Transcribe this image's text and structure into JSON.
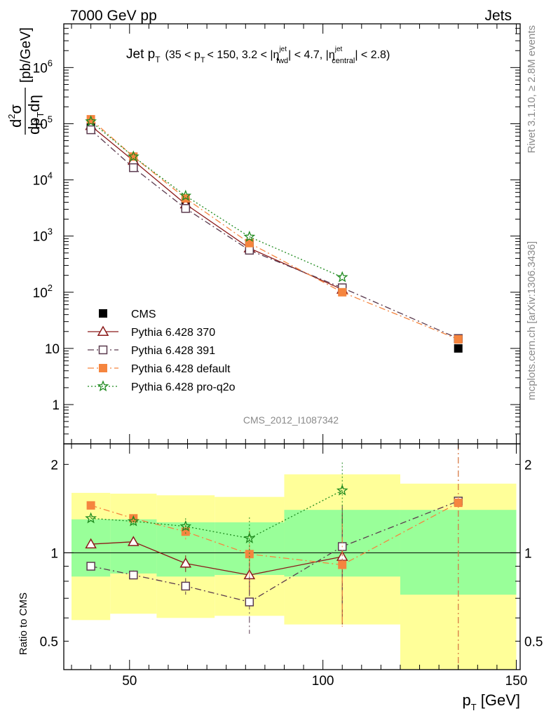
{
  "header": {
    "left": "7000 GeV pp",
    "right": "Jets",
    "side_top": "Rivet 3.1.10, ≥ 2.8M events",
    "side_bottom": "mcplots.cern.ch [arXiv:1306.3436]"
  },
  "plot_title": {
    "main": "Jet p",
    "main_sub": "T",
    "cond_open": "(35 < p",
    "cond_sub1": "T",
    "cond_mid1": "< 150, 3.2 < |η",
    "cond_sup1": "jet",
    "cond_sub2": "fwd",
    "cond_mid2": "| < 4.7, |η",
    "cond_sup2": "jet",
    "cond_sub3": "central",
    "cond_close": "| < 2.8)"
  },
  "analysis_id": "CMS_2012_I1087342",
  "axes": {
    "y_top_parts": {
      "d2": "d",
      "two": "2",
      "sigma": "σ",
      "denom_d": "dp",
      "denom_T": "T",
      "denom_rest": "dη",
      "unit": "[pb/GeV]"
    },
    "y_bottom": "Ratio to CMS",
    "x_main": "p",
    "x_sub": "T",
    "x_unit": "[GeV]"
  },
  "colors": {
    "cms": "#000000",
    "p370": "#8b1a1a",
    "p391": "#5a3a4e",
    "pdefault": "#f5853f",
    "pq2o": "#1e8a1e",
    "band_inner": "#99ff99",
    "band_outer": "#ffff99"
  },
  "chart_data": {
    "type": "scatter",
    "x_range": [
      33,
      151
    ],
    "x_ticks": [
      50,
      100,
      150
    ],
    "x_tick_labels": [
      "50",
      "100",
      "150"
    ],
    "top": {
      "y_log": true,
      "y_range": [
        0.2,
        6000000
      ],
      "y_ticks": [
        1,
        10,
        100,
        1000,
        10000,
        100000,
        1000000
      ],
      "y_tick_labels": [
        {
          "base": "1",
          "exp": ""
        },
        {
          "base": "10",
          "exp": ""
        },
        {
          "base": "10",
          "exp": "2"
        },
        {
          "base": "10",
          "exp": "3"
        },
        {
          "base": "10",
          "exp": "4"
        },
        {
          "base": "10",
          "exp": "5"
        },
        {
          "base": "10",
          "exp": "6"
        }
      ]
    },
    "ratio": {
      "y_log": true,
      "y_range": [
        0.4,
        2.35
      ],
      "y_ticks": [
        0.5,
        1,
        2
      ],
      "y_tick_labels": [
        "0.5",
        "1",
        "2"
      ]
    },
    "bins": [
      [
        35,
        45
      ],
      [
        45,
        57
      ],
      [
        57,
        72
      ],
      [
        72,
        90
      ],
      [
        90,
        120
      ],
      [
        120,
        150
      ]
    ],
    "band_inner": [
      [
        0.83,
        1.3
      ],
      [
        0.85,
        1.3
      ],
      [
        0.83,
        1.27
      ],
      [
        0.84,
        1.27
      ],
      [
        0.83,
        1.4
      ],
      [
        0.72,
        1.4
      ]
    ],
    "band_outer": [
      [
        0.59,
        1.6
      ],
      [
        0.62,
        1.59
      ],
      [
        0.6,
        1.57
      ],
      [
        0.61,
        1.55
      ],
      [
        0.57,
        1.85
      ],
      [
        0.4,
        1.72
      ]
    ],
    "series": [
      {
        "name": "CMS",
        "key": "cms",
        "marker": "square-filled",
        "line": "none",
        "x": [
          40,
          51,
          64.5,
          81,
          105,
          135
        ],
        "y": [
          86000,
          20000,
          4000,
          720,
          115,
          10
        ],
        "ratio": [
          1,
          1,
          1,
          1,
          1,
          1
        ]
      },
      {
        "name": "Pythia 6.428 370",
        "key": "p370",
        "marker": "triangle-open",
        "line": "solid",
        "x": [
          40,
          51,
          64.5,
          81,
          105
        ],
        "y": [
          92000,
          22000,
          3700,
          610,
          112
        ],
        "ratio": [
          1.07,
          1.09,
          0.92,
          0.84,
          0.97
        ],
        "ratio_err": [
          0.02,
          0.03,
          0.06,
          0.12,
          0.4
        ]
      },
      {
        "name": "Pythia 6.428 391",
        "key": "p391",
        "marker": "square-open",
        "line": "dashdot",
        "x": [
          40,
          51,
          64.5,
          81,
          105,
          135
        ],
        "y": [
          78000,
          16500,
          3100,
          560,
          120,
          15
        ],
        "ratio": [
          0.9,
          0.84,
          0.77,
          0.68,
          1.05,
          1.5
        ],
        "ratio_err": [
          0.02,
          0.03,
          0.05,
          0.15,
          0.4,
          1.2
        ]
      },
      {
        "name": "Pythia 6.428 default",
        "key": "pdefault",
        "marker": "square-filled",
        "line": "dashdot",
        "x": [
          40,
          51,
          64.5,
          81,
          105,
          135
        ],
        "y": [
          120000,
          26000,
          4700,
          750,
          100,
          14.5
        ],
        "ratio": [
          1.45,
          1.31,
          1.18,
          0.99,
          0.91,
          1.48
        ],
        "ratio_err": [
          0.03,
          0.04,
          0.07,
          0.2,
          0.35,
          1.2
        ]
      },
      {
        "name": "Pythia 6.428 pro-q2o",
        "key": "pq2o",
        "marker": "star-open",
        "line": "dotted",
        "x": [
          40,
          51,
          64.5,
          81,
          105
        ],
        "y": [
          110000,
          26000,
          5200,
          970,
          185
        ],
        "ratio": [
          1.31,
          1.28,
          1.23,
          1.12,
          1.63
        ],
        "ratio_err": [
          0.02,
          0.04,
          0.08,
          0.2,
          0.4
        ]
      }
    ]
  }
}
